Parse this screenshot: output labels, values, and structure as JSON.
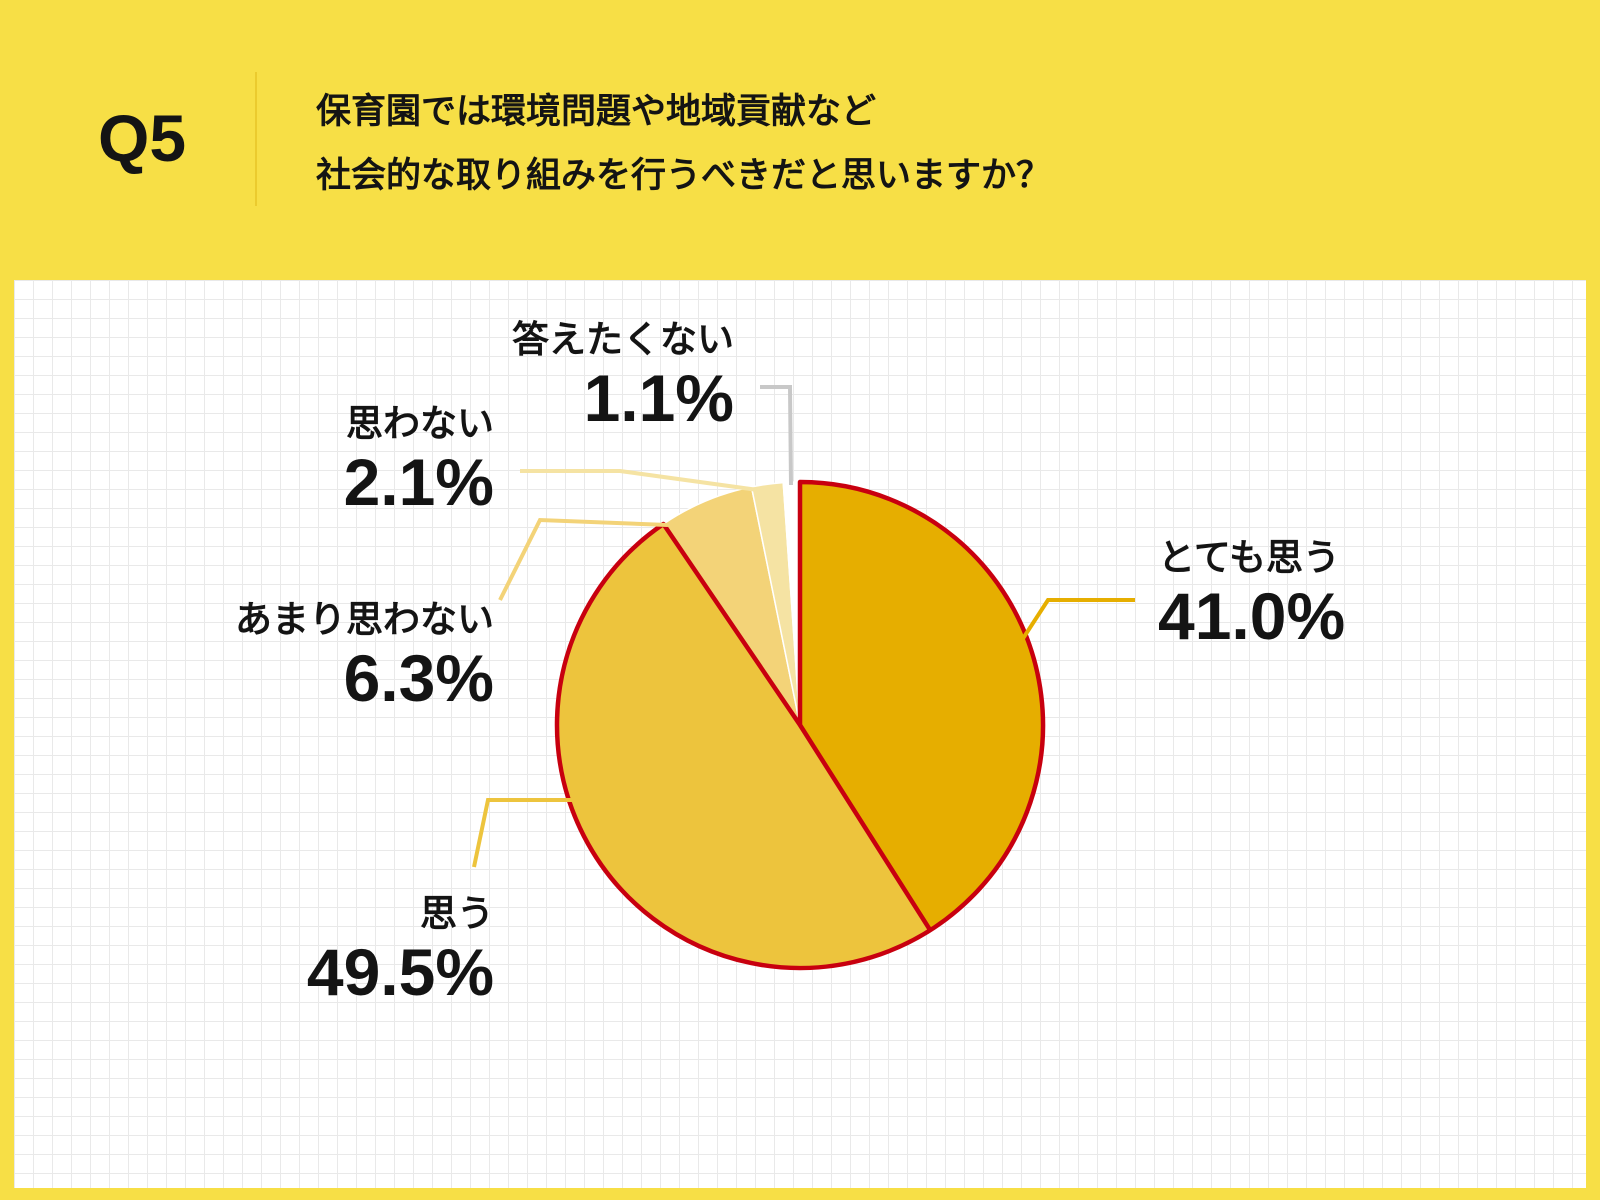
{
  "header": {
    "qnum": "Q5",
    "question_line1": "保育園では環境問題や地域貢献など",
    "question_line2": "社会的な取り組みを行うべきだと思いますか？"
  },
  "colors": {
    "background": "#F7DF46",
    "outline": "#C8000F",
    "slice_strongly_agree": "#E6AE00",
    "slice_agree": "#EDC43D",
    "slice_disagree": "#F3D378",
    "slice_strongly_disagree": "#F5E3A3",
    "slice_no_answer": "#FFFFFF",
    "leader_no_answer": "#C8C8C8"
  },
  "chart_data": {
    "type": "pie",
    "start": "12 o'clock",
    "direction": "clockwise",
    "slices": [
      {
        "label": "とても思う",
        "value": 41.0,
        "display": "41.0%"
      },
      {
        "label": "思う",
        "value": 49.5,
        "display": "49.5%"
      },
      {
        "label": "あまり思わない",
        "value": 6.3,
        "display": "6.3%"
      },
      {
        "label": "思わない",
        "value": 2.1,
        "display": "2.1%"
      },
      {
        "label": "答えたくない",
        "value": 1.1,
        "display": "1.1%"
      }
    ]
  }
}
